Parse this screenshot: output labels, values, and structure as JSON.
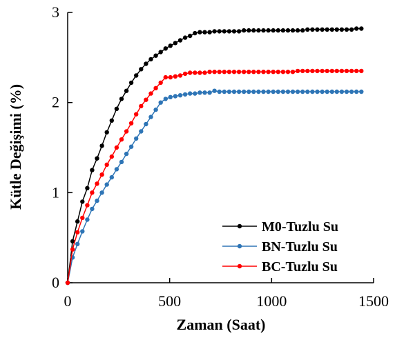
{
  "chart_data": {
    "type": "line",
    "xlabel": "Zaman (Saat)",
    "ylabel": "Kütle Değişimi (%)",
    "xlim": [
      0,
      1500
    ],
    "ylim": [
      0,
      3
    ],
    "xticks": [
      0,
      500,
      1000,
      1500
    ],
    "yticks": [
      0,
      1,
      2,
      3
    ],
    "grid": false,
    "legend_position": "bottom-right",
    "series": [
      {
        "name": "M0-Tuzlu Su",
        "color": "#000000",
        "x": [
          0,
          24,
          48,
          72,
          96,
          120,
          144,
          168,
          192,
          216,
          240,
          264,
          288,
          312,
          336,
          360,
          384,
          408,
          432,
          456,
          480,
          504,
          528,
          552,
          576,
          600,
          624,
          648,
          672,
          696,
          720,
          744,
          768,
          792,
          816,
          840,
          864,
          888,
          912,
          936,
          960,
          984,
          1008,
          1032,
          1056,
          1080,
          1104,
          1128,
          1152,
          1176,
          1200,
          1224,
          1248,
          1272,
          1296,
          1320,
          1344,
          1368,
          1392,
          1416,
          1440
        ],
        "y": [
          0,
          0.46,
          0.68,
          0.9,
          1.05,
          1.25,
          1.38,
          1.52,
          1.67,
          1.8,
          1.93,
          2.04,
          2.13,
          2.22,
          2.3,
          2.37,
          2.43,
          2.48,
          2.52,
          2.56,
          2.6,
          2.63,
          2.66,
          2.69,
          2.72,
          2.74,
          2.77,
          2.78,
          2.78,
          2.78,
          2.79,
          2.79,
          2.79,
          2.79,
          2.79,
          2.79,
          2.8,
          2.8,
          2.8,
          2.8,
          2.8,
          2.8,
          2.8,
          2.8,
          2.8,
          2.8,
          2.8,
          2.8,
          2.8,
          2.81,
          2.81,
          2.81,
          2.81,
          2.81,
          2.81,
          2.81,
          2.81,
          2.81,
          2.81,
          2.82,
          2.82
        ]
      },
      {
        "name": "BN-Tuzlu Su",
        "color": "#2E75B6",
        "x": [
          0,
          24,
          48,
          72,
          96,
          120,
          144,
          168,
          192,
          216,
          240,
          264,
          288,
          312,
          336,
          360,
          384,
          408,
          432,
          456,
          480,
          504,
          528,
          552,
          576,
          600,
          624,
          648,
          672,
          696,
          720,
          744,
          768,
          792,
          816,
          840,
          864,
          888,
          912,
          936,
          960,
          984,
          1008,
          1032,
          1056,
          1080,
          1104,
          1128,
          1152,
          1176,
          1200,
          1224,
          1248,
          1272,
          1296,
          1320,
          1344,
          1368,
          1392,
          1416,
          1440
        ],
        "y": [
          0,
          0.28,
          0.43,
          0.57,
          0.7,
          0.82,
          0.91,
          1.0,
          1.09,
          1.17,
          1.26,
          1.34,
          1.43,
          1.51,
          1.6,
          1.68,
          1.76,
          1.84,
          1.92,
          2.0,
          2.04,
          2.06,
          2.07,
          2.08,
          2.09,
          2.1,
          2.1,
          2.11,
          2.11,
          2.11,
          2.13,
          2.12,
          2.12,
          2.12,
          2.12,
          2.12,
          2.12,
          2.12,
          2.12,
          2.12,
          2.12,
          2.12,
          2.12,
          2.12,
          2.12,
          2.12,
          2.12,
          2.12,
          2.12,
          2.12,
          2.12,
          2.12,
          2.12,
          2.12,
          2.12,
          2.12,
          2.12,
          2.12,
          2.12,
          2.12,
          2.12
        ]
      },
      {
        "name": "BC-Tuzlu Su",
        "color": "#FF0000",
        "x": [
          0,
          24,
          48,
          72,
          96,
          120,
          144,
          168,
          192,
          216,
          240,
          264,
          288,
          312,
          336,
          360,
          384,
          408,
          432,
          456,
          480,
          504,
          528,
          552,
          576,
          600,
          624,
          648,
          672,
          696,
          720,
          744,
          768,
          792,
          816,
          840,
          864,
          888,
          912,
          936,
          960,
          984,
          1008,
          1032,
          1056,
          1080,
          1104,
          1128,
          1152,
          1176,
          1200,
          1224,
          1248,
          1272,
          1296,
          1320,
          1344,
          1368,
          1392,
          1416,
          1440
        ],
        "y": [
          0,
          0.37,
          0.56,
          0.72,
          0.86,
          1.0,
          1.1,
          1.2,
          1.31,
          1.4,
          1.5,
          1.59,
          1.68,
          1.77,
          1.87,
          1.96,
          2.03,
          2.1,
          2.16,
          2.22,
          2.28,
          2.28,
          2.29,
          2.3,
          2.32,
          2.33,
          2.33,
          2.33,
          2.33,
          2.34,
          2.34,
          2.34,
          2.34,
          2.34,
          2.34,
          2.34,
          2.34,
          2.34,
          2.34,
          2.34,
          2.34,
          2.34,
          2.34,
          2.34,
          2.34,
          2.34,
          2.34,
          2.35,
          2.35,
          2.35,
          2.35,
          2.35,
          2.35,
          2.35,
          2.35,
          2.35,
          2.35,
          2.35,
          2.35,
          2.35,
          2.35
        ]
      }
    ]
  }
}
